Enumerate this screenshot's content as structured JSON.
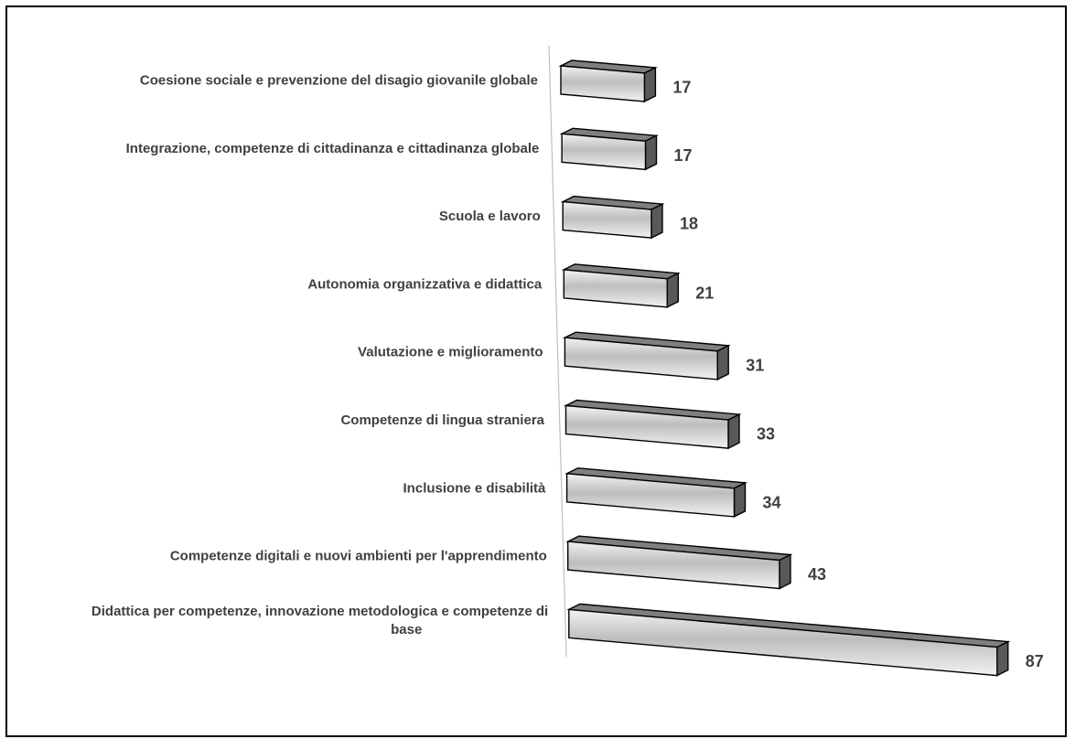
{
  "chart_data": {
    "type": "bar",
    "orientation": "horizontal",
    "style": "3d",
    "categories": [
      "Coesione sociale e prevenzione del disagio giovanile globale",
      "Integrazione, competenze di cittadinanza e cittadinanza globale",
      "Scuola e lavoro",
      "Autonomia organizzativa e didattica",
      "Valutazione e miglioramento",
      "Competenze di lingua straniera",
      "Inclusione e disabilità",
      "Competenze digitali e nuovi ambienti per l'apprendimento",
      "Didattica per competenze, innovazione metodologica e competenze di base"
    ],
    "values": [
      17,
      17,
      18,
      21,
      31,
      33,
      34,
      43,
      87
    ],
    "value_labels": [
      "17",
      "17",
      "18",
      "21",
      "31",
      "33",
      "34",
      "43",
      "87"
    ],
    "xlim": [
      0,
      87
    ],
    "grid": false,
    "legend": "none",
    "colors": {
      "bar_front": "#d0d0d0",
      "bar_top": "#7f7f7f",
      "bar_side": "#595959",
      "outline": "#000000",
      "axis": "#bfbfbf",
      "text": "#404040"
    }
  }
}
